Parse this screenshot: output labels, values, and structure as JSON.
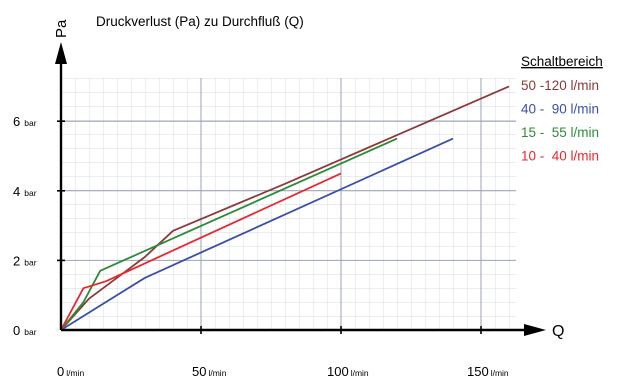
{
  "chart_data": {
    "type": "line",
    "title": "Druckverlust (Pa) zu Durchfluß (Q)",
    "ylabel": "Pa",
    "xlabel": "Q",
    "xlim": [
      0,
      160
    ],
    "ylim": [
      0,
      7.2
    ],
    "grid": true,
    "x_ticks": [
      {
        "value": 0,
        "num": "0",
        "unit": "l/min"
      },
      {
        "value": 50,
        "num": "50",
        "unit": "l/min"
      },
      {
        "value": 100,
        "num": "100",
        "unit": "l/min"
      },
      {
        "value": 150,
        "num": "150",
        "unit": "l/min"
      }
    ],
    "y_ticks": [
      {
        "value": 0,
        "num": "0",
        "unit": "bar"
      },
      {
        "value": 2,
        "num": "2",
        "unit": "bar"
      },
      {
        "value": 4,
        "num": "4",
        "unit": "bar"
      },
      {
        "value": 6,
        "num": "6",
        "unit": "bar"
      }
    ],
    "legend": {
      "title": "Schaltbereich",
      "position": "top-right"
    },
    "series": [
      {
        "name": "50 -120 l/min",
        "color": "#8b3a3a",
        "points": [
          [
            0,
            0
          ],
          [
            10,
            0.9
          ],
          [
            20,
            1.5
          ],
          [
            30,
            2.1
          ],
          [
            40,
            2.85
          ],
          [
            80,
            4.2
          ],
          [
            160,
            7.0
          ]
        ]
      },
      {
        "name": "40 -  90 l/min",
        "color": "#3a4fa8",
        "points": [
          [
            0,
            0
          ],
          [
            30,
            1.5
          ],
          [
            140,
            5.5
          ]
        ]
      },
      {
        "name": "15 -  55 l/min",
        "color": "#2e8b3a",
        "points": [
          [
            0,
            0
          ],
          [
            8,
            0.8
          ],
          [
            14,
            1.7
          ],
          [
            120,
            5.5
          ]
        ]
      },
      {
        "name": "10 -  40 l/min",
        "color": "#e8282e",
        "points": [
          [
            0,
            0
          ],
          [
            8,
            1.2
          ],
          [
            16,
            1.4
          ],
          [
            100,
            4.5
          ]
        ]
      }
    ]
  }
}
